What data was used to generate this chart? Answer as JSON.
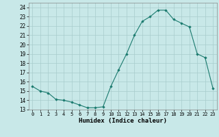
{
  "x": [
    0,
    1,
    2,
    3,
    4,
    5,
    6,
    7,
    8,
    9,
    10,
    11,
    12,
    13,
    14,
    15,
    16,
    17,
    18,
    19,
    20,
    21,
    22,
    23
  ],
  "y": [
    15.5,
    15.0,
    14.8,
    14.1,
    14.0,
    13.8,
    13.5,
    13.2,
    13.2,
    13.3,
    15.5,
    17.3,
    19.0,
    21.0,
    22.5,
    23.0,
    23.7,
    23.7,
    22.7,
    22.3,
    21.9,
    19.0,
    18.6,
    15.3
  ],
  "xlabel": "Humidex (Indice chaleur)",
  "xlim": [
    -0.5,
    23.5
  ],
  "ylim": [
    13,
    24.5
  ],
  "yticks": [
    13,
    14,
    15,
    16,
    17,
    18,
    19,
    20,
    21,
    22,
    23,
    24
  ],
  "xticks": [
    0,
    1,
    2,
    3,
    4,
    5,
    6,
    7,
    8,
    9,
    10,
    11,
    12,
    13,
    14,
    15,
    16,
    17,
    18,
    19,
    20,
    21,
    22,
    23
  ],
  "xtick_labels": [
    "0",
    "1",
    "2",
    "3",
    "4",
    "5",
    "6",
    "7",
    "8",
    "9",
    "10",
    "11",
    "12",
    "13",
    "14",
    "15",
    "16",
    "17",
    "18",
    "19",
    "20",
    "21",
    "22",
    "23"
  ],
  "line_color": "#1a7a6e",
  "marker_color": "#1a7a6e",
  "bg_color": "#c8e8e8",
  "grid_color": "#a8cccc",
  "axes_bg": "#c8e8e8"
}
